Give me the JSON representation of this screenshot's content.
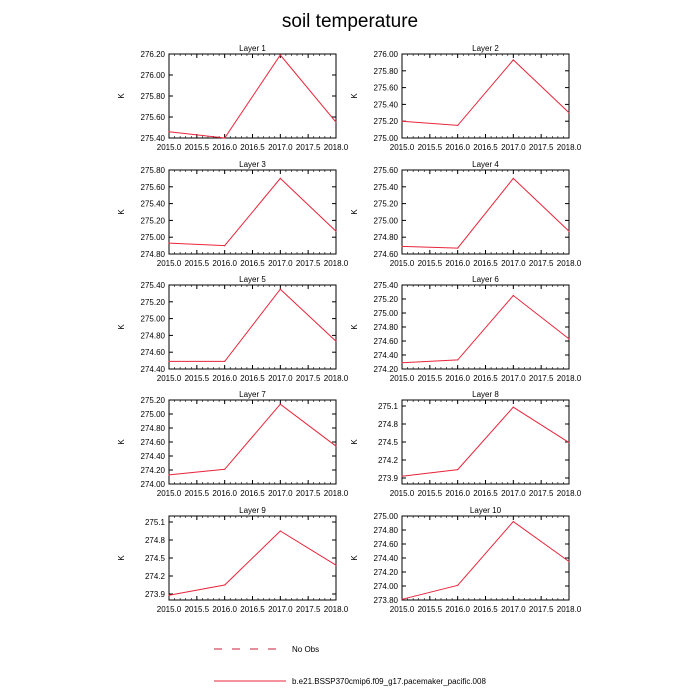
{
  "figure": {
    "title": "soil temperature",
    "legend": {
      "entries": [
        {
          "label": "No Obs",
          "style": "dashed",
          "color": "#cc1f3a"
        },
        {
          "label": "b.e21.BSSP370cmip6.f09_g17.pacemaker_pacific.008",
          "style": "solid",
          "color": "#e8253b"
        }
      ]
    },
    "line_color": "#e8253b"
  },
  "chart_data": [
    {
      "type": "line",
      "title": "Layer 1",
      "ylabel": "K",
      "x": [
        2015.0,
        2016.0,
        2017.0,
        2018.0
      ],
      "values": [
        275.46,
        275.4,
        276.19,
        275.55
      ],
      "xlim": [
        2015.0,
        2018.0
      ],
      "ylim": [
        275.4,
        276.2
      ],
      "xticks": [
        "2015.0",
        "2015.5",
        "2016.0",
        "2016.5",
        "2017.0",
        "2017.5",
        "2018.0"
      ],
      "yticks": [
        "275.40",
        "275.60",
        "275.80",
        "276.00",
        "276.20"
      ]
    },
    {
      "type": "line",
      "title": "Layer 2",
      "ylabel": "K",
      "x": [
        2015.0,
        2016.0,
        2017.0,
        2018.0
      ],
      "values": [
        275.2,
        275.15,
        275.93,
        275.3
      ],
      "xlim": [
        2015.0,
        2018.0
      ],
      "ylim": [
        275.0,
        276.0
      ],
      "xticks": [
        "2015.0",
        "2015.5",
        "2016.0",
        "2016.5",
        "2017.0",
        "2017.5",
        "2018.0"
      ],
      "yticks": [
        "275.00",
        "275.20",
        "275.40",
        "275.60",
        "275.80",
        "276.00"
      ]
    },
    {
      "type": "line",
      "title": "Layer 3",
      "ylabel": "K",
      "x": [
        2015.0,
        2016.0,
        2017.0,
        2018.0
      ],
      "values": [
        274.93,
        274.9,
        275.7,
        275.07
      ],
      "xlim": [
        2015.0,
        2018.0
      ],
      "ylim": [
        274.8,
        275.8
      ],
      "xticks": [
        "2015.0",
        "2015.5",
        "2016.0",
        "2016.5",
        "2017.0",
        "2017.5",
        "2018.0"
      ],
      "yticks": [
        "274.80",
        "275.00",
        "275.20",
        "275.40",
        "275.60",
        "275.80"
      ]
    },
    {
      "type": "line",
      "title": "Layer 4",
      "ylabel": "K",
      "x": [
        2015.0,
        2016.0,
        2017.0,
        2018.0
      ],
      "values": [
        274.69,
        274.67,
        275.5,
        274.87
      ],
      "xlim": [
        2015.0,
        2018.0
      ],
      "ylim": [
        274.6,
        275.6
      ],
      "xticks": [
        "2015.0",
        "2015.5",
        "2016.0",
        "2016.5",
        "2017.0",
        "2017.5",
        "2018.0"
      ],
      "yticks": [
        "274.60",
        "274.80",
        "275.00",
        "275.20",
        "275.40",
        "275.60"
      ]
    },
    {
      "type": "line",
      "title": "Layer 5",
      "ylabel": "K",
      "x": [
        2015.0,
        2016.0,
        2017.0,
        2018.0
      ],
      "values": [
        274.49,
        274.49,
        275.35,
        274.73
      ],
      "xlim": [
        2015.0,
        2018.0
      ],
      "ylim": [
        274.4,
        275.4
      ],
      "xticks": [
        "2015.0",
        "2015.5",
        "2016.0",
        "2016.5",
        "2017.0",
        "2017.5",
        "2018.0"
      ],
      "yticks": [
        "274.40",
        "274.60",
        "274.80",
        "275.00",
        "275.20",
        "275.40"
      ]
    },
    {
      "type": "line",
      "title": "Layer 6",
      "ylabel": "K",
      "x": [
        2015.0,
        2016.0,
        2017.0,
        2018.0
      ],
      "values": [
        274.29,
        274.33,
        275.25,
        274.63
      ],
      "xlim": [
        2015.0,
        2018.0
      ],
      "ylim": [
        274.2,
        275.4
      ],
      "xticks": [
        "2015.0",
        "2015.5",
        "2016.0",
        "2016.5",
        "2017.0",
        "2017.5",
        "2018.0"
      ],
      "yticks": [
        "274.20",
        "274.40",
        "274.60",
        "274.80",
        "275.00",
        "275.20",
        "275.40"
      ]
    },
    {
      "type": "line",
      "title": "Layer 7",
      "ylabel": "K",
      "x": [
        2015.0,
        2016.0,
        2017.0,
        2018.0
      ],
      "values": [
        274.13,
        274.21,
        275.14,
        274.54
      ],
      "xlim": [
        2015.0,
        2018.0
      ],
      "ylim": [
        274.0,
        275.2
      ],
      "xticks": [
        "2015.0",
        "2015.5",
        "2016.0",
        "2016.5",
        "2017.0",
        "2017.5",
        "2018.0"
      ],
      "yticks": [
        "274.00",
        "274.20",
        "274.40",
        "274.60",
        "274.80",
        "275.00",
        "275.20"
      ]
    },
    {
      "type": "line",
      "title": "Layer 8",
      "ylabel": "K",
      "x": [
        2015.0,
        2016.0,
        2017.0,
        2018.0
      ],
      "values": [
        273.93,
        274.04,
        275.08,
        274.49
      ],
      "xlim": [
        2015.0,
        2018.0
      ],
      "ylim": [
        273.8,
        275.2
      ],
      "xticks": [
        "2015.0",
        "2015.5",
        "2016.0",
        "2016.5",
        "2017.0",
        "2017.5",
        "2018.0"
      ],
      "yticks": [
        "273.9",
        "274.2",
        "274.5",
        "274.8",
        "275.1"
      ]
    },
    {
      "type": "line",
      "title": "Layer 9",
      "ylabel": "K",
      "x": [
        2015.0,
        2016.0,
        2017.0,
        2018.0
      ],
      "values": [
        273.88,
        274.05,
        274.95,
        274.38
      ],
      "xlim": [
        2015.0,
        2018.0
      ],
      "ylim": [
        273.8,
        275.2
      ],
      "xticks": [
        "2015.0",
        "2015.5",
        "2016.0",
        "2016.5",
        "2017.0",
        "2017.5",
        "2018.0"
      ],
      "yticks": [
        "273.9",
        "274.2",
        "274.5",
        "274.8",
        "275.1"
      ]
    },
    {
      "type": "line",
      "title": "Layer 10",
      "ylabel": "K",
      "x": [
        2015.0,
        2016.0,
        2017.0,
        2018.0
      ],
      "values": [
        273.81,
        274.01,
        274.92,
        274.35
      ],
      "xlim": [
        2015.0,
        2018.0
      ],
      "ylim": [
        273.8,
        275.0
      ],
      "xticks": [
        "2015.0",
        "2015.5",
        "2016.0",
        "2016.5",
        "2017.0",
        "2017.5",
        "2018.0"
      ],
      "yticks": [
        "273.80",
        "274.00",
        "274.20",
        "274.40",
        "274.60",
        "274.80",
        "275.00"
      ]
    }
  ]
}
